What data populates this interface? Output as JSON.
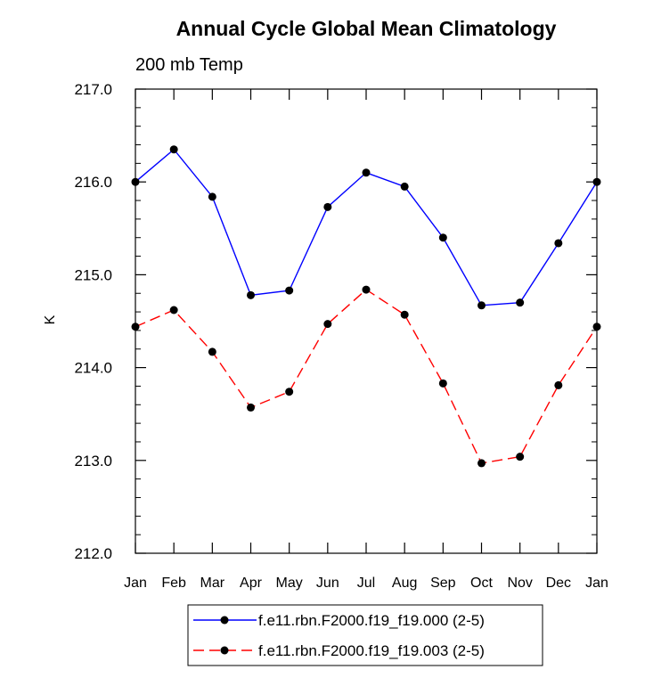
{
  "chart_data": {
    "type": "line",
    "title": "Annual Cycle Global Mean Climatology",
    "subtitle": "200 mb Temp",
    "xlabel": "",
    "ylabel": "K",
    "categories": [
      "Jan",
      "Feb",
      "Mar",
      "Apr",
      "May",
      "Jun",
      "Jul",
      "Aug",
      "Sep",
      "Oct",
      "Nov",
      "Dec",
      "Jan"
    ],
    "ylim": [
      212.0,
      217.0
    ],
    "yticks": [
      212.0,
      213.0,
      214.0,
      215.0,
      216.0,
      217.0
    ],
    "ytick_labels": [
      "212.0",
      "213.0",
      "214.0",
      "215.0",
      "216.0",
      "217.0"
    ],
    "series": [
      {
        "name": "f.e11.rbn.F2000.f19_f19.000 (2-5)",
        "color": "#0000ff",
        "dash": "solid",
        "values": [
          216.0,
          216.35,
          215.84,
          214.78,
          214.83,
          215.73,
          216.1,
          215.95,
          215.4,
          214.67,
          214.7,
          215.34,
          216.0
        ]
      },
      {
        "name": "f.e11.rbn.F2000.f19_f19.003 (2-5)",
        "color": "#ff0000",
        "dash": "dashed",
        "values": [
          214.44,
          214.62,
          214.17,
          213.57,
          213.74,
          214.47,
          214.84,
          214.57,
          213.83,
          212.97,
          213.04,
          213.81,
          214.44
        ]
      }
    ],
    "grid": false,
    "legend_position": "bottom"
  }
}
